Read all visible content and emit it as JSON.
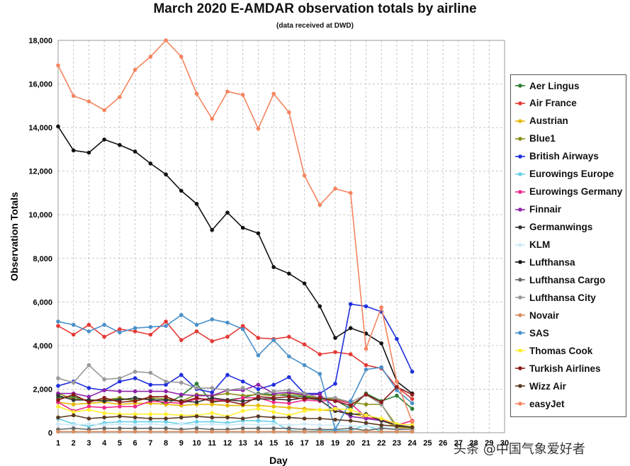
{
  "chart_data": {
    "type": "line",
    "title": "March 2020 E-AMDAR observation totals by airline",
    "subtitle": "(data received at DWD)",
    "xlabel": "Day",
    "ylabel": "Observation Totals",
    "xlim": [
      1,
      30
    ],
    "ylim": [
      0,
      18000
    ],
    "x_ticks": [
      "1",
      "2",
      "3",
      "4",
      "5",
      "6",
      "7",
      "8",
      "9",
      "10",
      "11",
      "12",
      "13",
      "14",
      "15",
      "16",
      "17",
      "18",
      "19",
      "20",
      "21",
      "22",
      "23",
      "24",
      "25",
      "26",
      "27",
      "28",
      "29",
      "30"
    ],
    "y_ticks": [
      "0",
      "2,000",
      "4,000",
      "6,000",
      "8,000",
      "10,000",
      "12,000",
      "14,000",
      "16,000",
      "18,000"
    ],
    "y_tick_values": [
      0,
      2000,
      4000,
      6000,
      8000,
      10000,
      12000,
      14000,
      16000,
      18000
    ],
    "grid": true,
    "legend_position": "right",
    "x": [
      1,
      2,
      3,
      4,
      5,
      6,
      7,
      8,
      9,
      10,
      11,
      12,
      13,
      14,
      15,
      16,
      17,
      18,
      19,
      20,
      21,
      22,
      23,
      24
    ],
    "series": [
      {
        "name": "Aer Lingus",
        "color": "#2e7d32",
        "values": [
          1600,
          1650,
          1450,
          1500,
          1550,
          1500,
          1600,
          1300,
          1700,
          2250,
          1400,
          1500,
          1600,
          1800,
          1750,
          1700,
          1650,
          1550,
          1500,
          1100,
          1800,
          1450,
          1700,
          1100
        ]
      },
      {
        "name": "Air France",
        "color": "#e53935",
        "values": [
          4900,
          4500,
          4950,
          4400,
          4750,
          4650,
          4500,
          5100,
          4250,
          4650,
          4200,
          4400,
          4900,
          4350,
          4300,
          4400,
          4050,
          3600,
          3700,
          3600,
          3100,
          2950,
          2100,
          1550
        ]
      },
      {
        "name": "Austrian",
        "color": "#e6b800",
        "values": [
          1400,
          1300,
          1350,
          1400,
          1300,
          1350,
          1350,
          1300,
          1250,
          1300,
          1300,
          1250,
          1250,
          1250,
          1200,
          1150,
          1100,
          1050,
          1000,
          900,
          700,
          600,
          250,
          150
        ]
      },
      {
        "name": "Blue1",
        "color": "#8a8f1a",
        "values": [
          1800,
          1550,
          1500,
          1500,
          1600,
          1450,
          1600,
          1550,
          1450,
          1750,
          1700,
          1800,
          1700,
          1750,
          1700,
          1800,
          1700,
          1600,
          1550,
          1400,
          1300,
          1300,
          300,
          200
        ]
      },
      {
        "name": "British Airways",
        "color": "#1f2fdc",
        "values": [
          2150,
          2350,
          2050,
          1950,
          2350,
          2500,
          2200,
          2200,
          2650,
          2000,
          1850,
          2650,
          2350,
          2000,
          2200,
          2550,
          1800,
          1800,
          2250,
          5900,
          5800,
          5550,
          4300,
          2800
        ]
      },
      {
        "name": "Eurowings Europe",
        "color": "#6ad0e8",
        "values": [
          650,
          400,
          300,
          450,
          500,
          500,
          500,
          500,
          400,
          500,
          500,
          450,
          550,
          550,
          500,
          100,
          50,
          100,
          100,
          100,
          350,
          50,
          50,
          50
        ]
      },
      {
        "name": "Eurowings Germany",
        "color": "#ee2a8a",
        "values": [
          1400,
          1000,
          1200,
          1150,
          1200,
          1200,
          1450,
          1400,
          1350,
          1550,
          1550,
          1450,
          1600,
          1600,
          1400,
          1350,
          1500,
          1450,
          1500,
          1350,
          700,
          600,
          350,
          550
        ]
      },
      {
        "name": "Finnair",
        "color": "#8e24aa",
        "values": [
          1800,
          1800,
          1650,
          1950,
          1900,
          1900,
          1900,
          1900,
          1750,
          1700,
          1700,
          1950,
          1950,
          2200,
          1800,
          1850,
          1750,
          1750,
          1150,
          750,
          650,
          550,
          350,
          250
        ]
      },
      {
        "name": "Germanwings",
        "color": "#333333",
        "values": [
          1700,
          1500,
          1500,
          1450,
          1500,
          1600,
          1500,
          1500,
          1450,
          1400,
          1600,
          1500,
          1450,
          1550,
          1550,
          1500,
          1600,
          1500,
          1000,
          850,
          850,
          550,
          350,
          250
        ]
      },
      {
        "name": "KLM",
        "color": "#cfe9f5",
        "values": [
          400,
          350,
          400,
          350,
          400,
          350,
          400,
          350,
          400,
          350,
          400,
          350,
          400,
          350,
          400,
          350,
          400,
          350,
          350,
          300,
          300,
          250,
          200,
          150
        ]
      },
      {
        "name": "Lufthansa",
        "color": "#111111",
        "values": [
          14050,
          12950,
          12850,
          13450,
          13200,
          12900,
          12350,
          11850,
          11100,
          10500,
          9300,
          10100,
          9400,
          9150,
          7600,
          7300,
          6850,
          5800,
          4350,
          4800,
          4550,
          4100,
          2350,
          1800
        ]
      },
      {
        "name": "Lufthansa Cargo",
        "color": "#666666",
        "values": [
          150,
          200,
          150,
          200,
          200,
          200,
          200,
          200,
          150,
          200,
          150,
          150,
          200,
          200,
          200,
          200,
          150,
          150,
          150,
          200,
          100,
          200,
          150,
          150
        ]
      },
      {
        "name": "Lufthansa City",
        "color": "#999999",
        "values": [
          2500,
          2300,
          3100,
          2450,
          2500,
          2800,
          2750,
          2350,
          2300,
          2050,
          2050,
          1950,
          2050,
          1750,
          1900,
          1950,
          1800,
          1600,
          1600,
          1400,
          1750,
          1300,
          200,
          150
        ]
      },
      {
        "name": "Novair",
        "color": "#d98c5f",
        "values": [
          50,
          50,
          50,
          50,
          50,
          50,
          50,
          50,
          50,
          50,
          50,
          50,
          50,
          50,
          50,
          50,
          50,
          50,
          50,
          50,
          50,
          50,
          50,
          50
        ]
      },
      {
        "name": "SAS",
        "color": "#4a90c9",
        "values": [
          5100,
          4950,
          4650,
          4950,
          4600,
          4800,
          4850,
          4900,
          5400,
          4950,
          5200,
          5050,
          4750,
          3550,
          4250,
          3500,
          3100,
          2700,
          150,
          1450,
          2900,
          3000,
          1950,
          1350
        ]
      },
      {
        "name": "Thomas Cook",
        "color": "#ffee33",
        "values": [
          1200,
          950,
          1050,
          900,
          850,
          850,
          850,
          850,
          800,
          800,
          900,
          750,
          1000,
          1100,
          950,
          800,
          1000,
          1050,
          1100,
          1050,
          800,
          650,
          400,
          350
        ]
      },
      {
        "name": "Turkish Airlines",
        "color": "#8b1a1a",
        "values": [
          1500,
          1750,
          1400,
          1600,
          1400,
          1450,
          1650,
          1650,
          1400,
          1600,
          1450,
          1450,
          1300,
          1650,
          1600,
          1650,
          1550,
          1600,
          1450,
          1250,
          1750,
          1400,
          2100,
          1750
        ]
      },
      {
        "name": "Wizz Air",
        "color": "#5a3a22",
        "values": [
          700,
          800,
          650,
          700,
          750,
          700,
          650,
          650,
          700,
          750,
          700,
          700,
          650,
          750,
          700,
          700,
          650,
          650,
          600,
          550,
          450,
          350,
          300,
          250
        ]
      },
      {
        "name": "easyJet",
        "color": "#f4845f",
        "values": [
          16850,
          15450,
          15200,
          14800,
          15400,
          16650,
          17250,
          18000,
          17250,
          15550,
          14400,
          15650,
          15500,
          13950,
          15550,
          14700,
          11800,
          10450,
          11200,
          11000,
          3850,
          5750,
          2350,
          500
        ]
      }
    ]
  },
  "watermark": "头条 @中国气象爱好者"
}
